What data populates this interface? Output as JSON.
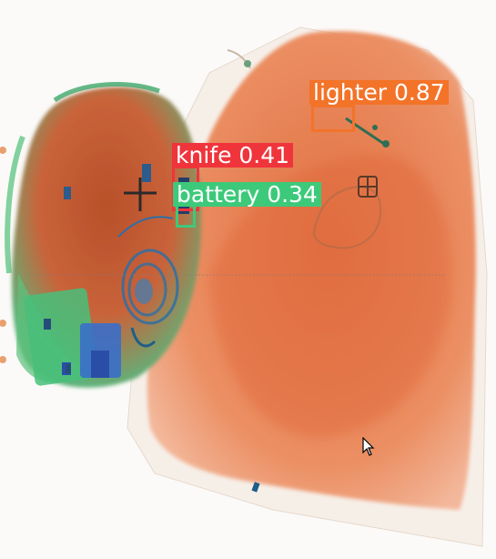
{
  "detections": [
    {
      "class": "lighter",
      "confidence": "0.87",
      "label": "lighter 0.87",
      "color": "#f37329"
    },
    {
      "class": "knife",
      "confidence": "0.41",
      "label": "knife 0.41",
      "color": "#f0343c"
    },
    {
      "class": "battery",
      "confidence": "0.34",
      "label": "battery 0.34",
      "color": "#3dc97a"
    }
  ]
}
